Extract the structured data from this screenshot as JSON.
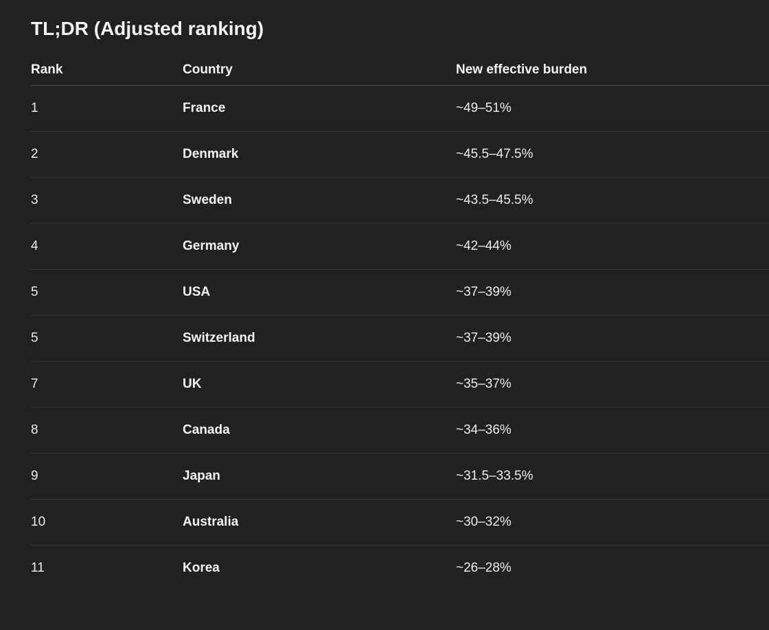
{
  "title": "TL;DR (Adjusted ranking)",
  "table": {
    "headers": [
      "Rank",
      "Country",
      "New effective burden"
    ],
    "rows": [
      {
        "rank": "1",
        "country": "France",
        "burden": "~49–51%"
      },
      {
        "rank": "2",
        "country": "Denmark",
        "burden": "~45.5–47.5%"
      },
      {
        "rank": "3",
        "country": "Sweden",
        "burden": "~43.5–45.5%"
      },
      {
        "rank": "4",
        "country": "Germany",
        "burden": "~42–44%"
      },
      {
        "rank": "5",
        "country": "USA",
        "burden": "~37–39%"
      },
      {
        "rank": "5",
        "country": "Switzerland",
        "burden": "~37–39%"
      },
      {
        "rank": "7",
        "country": "UK",
        "burden": "~35–37%"
      },
      {
        "rank": "8",
        "country": "Canada",
        "burden": "~34–36%"
      },
      {
        "rank": "9",
        "country": "Japan",
        "burden": "~31.5–33.5%"
      },
      {
        "rank": "10",
        "country": "Australia",
        "burden": "~30–32%"
      },
      {
        "rank": "11",
        "country": "Korea",
        "burden": "~26–28%"
      }
    ]
  },
  "colors": {
    "background": "#212121",
    "text": "#ececec",
    "divider": "#333333"
  }
}
